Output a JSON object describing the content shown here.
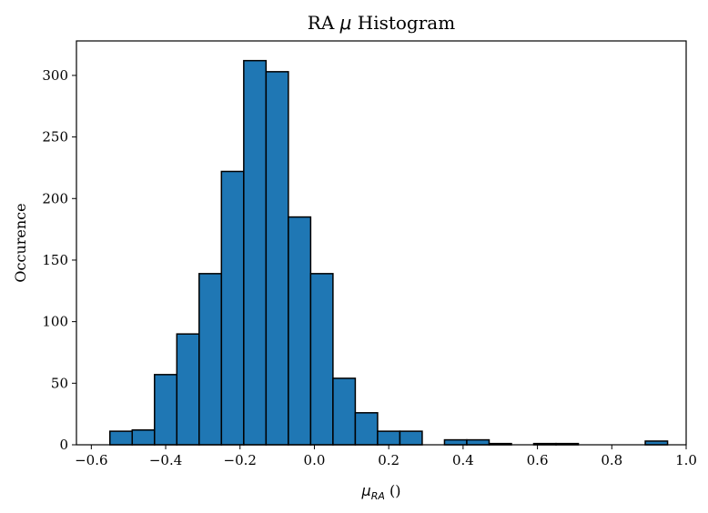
{
  "chart_data": {
    "type": "bar",
    "title": "RA μ Histogram",
    "xlabel": "μRA ()",
    "ylabel": "Occurence",
    "xlim": [
      -0.64,
      1.0
    ],
    "ylim": [
      0,
      328
    ],
    "xticks": [
      -0.6,
      -0.4,
      -0.2,
      0.0,
      0.2,
      0.4,
      0.6,
      0.8,
      1.0
    ],
    "xtick_labels": [
      "−0.6",
      "−0.4",
      "−0.2",
      "0.0",
      "0.2",
      "0.4",
      "0.6",
      "0.8",
      "1.0"
    ],
    "yticks": [
      0,
      50,
      100,
      150,
      200,
      250,
      300
    ],
    "ytick_labels": [
      "0",
      "50",
      "100",
      "150",
      "200",
      "250",
      "300"
    ],
    "bin_edges": [
      -0.55,
      -0.49,
      -0.43,
      -0.37,
      -0.31,
      -0.25,
      -0.19,
      -0.13,
      -0.07,
      -0.01,
      0.05,
      0.11,
      0.17,
      0.23,
      0.29,
      0.35,
      0.41,
      0.47,
      0.53,
      0.59,
      0.65,
      0.71,
      0.77,
      0.83,
      0.89,
      0.95
    ],
    "values": [
      11,
      12,
      57,
      90,
      139,
      222,
      312,
      303,
      185,
      139,
      54,
      26,
      11,
      11,
      0,
      4,
      4,
      1,
      0,
      1,
      1,
      0,
      0,
      0,
      3
    ],
    "bar_color": "#1f77b4",
    "edge_color": "#000000",
    "grid": false
  }
}
